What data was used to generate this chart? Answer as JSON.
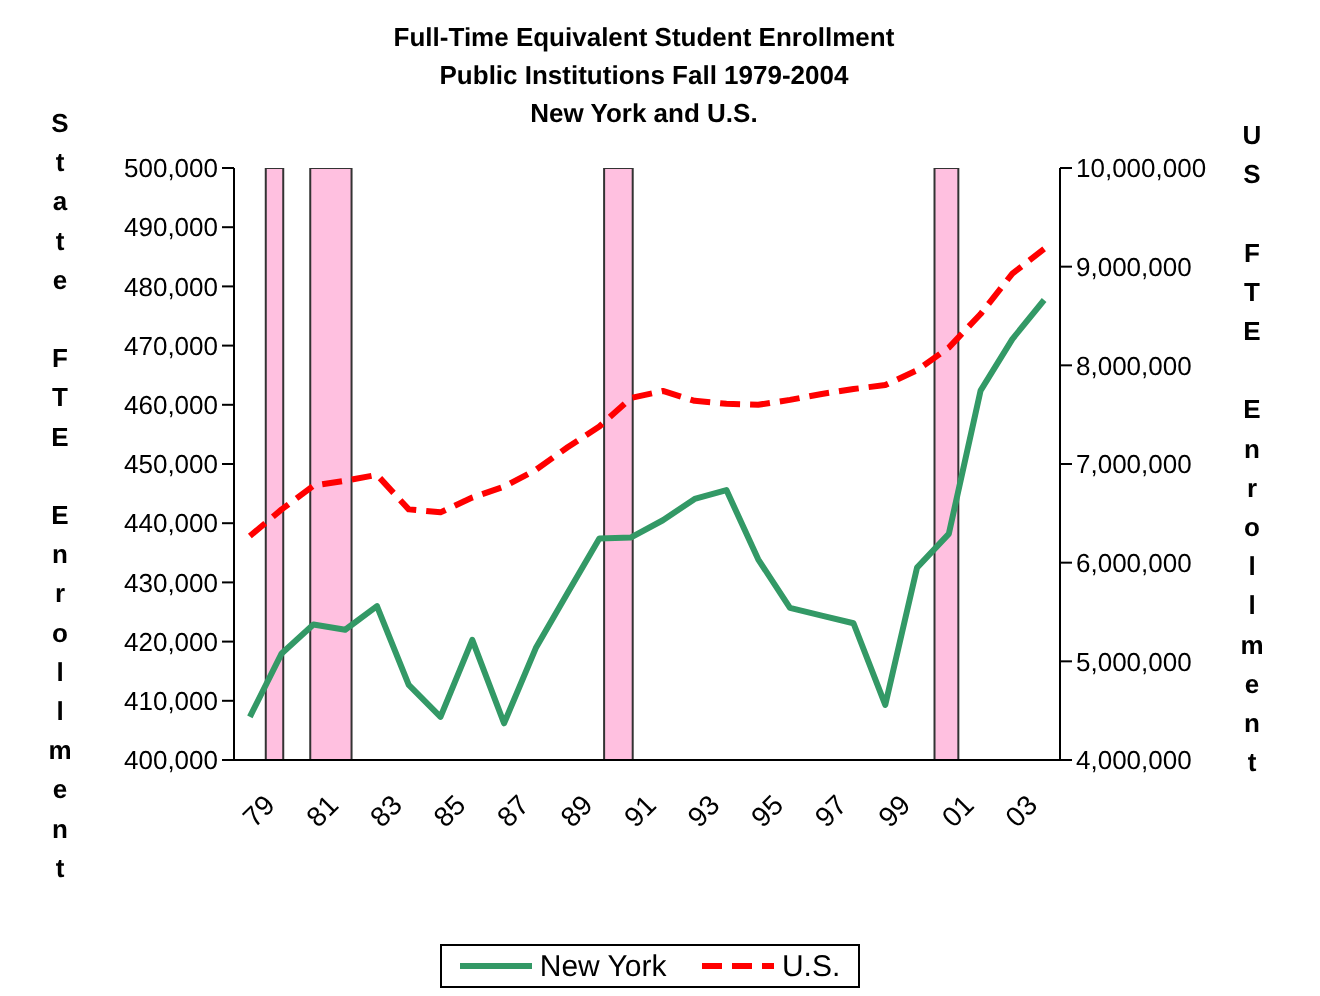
{
  "chart_data": {
    "type": "line",
    "title": "Full-Time Equivalent Student Enrollment\nPublic Institutions Fall 1979-2004\nNew York and U.S.",
    "ylabel": "State FTE Enrollment",
    "y2label": "US FTE Enrollment",
    "x": [
      1979,
      1980,
      1981,
      1982,
      1983,
      1984,
      1985,
      1986,
      1987,
      1988,
      1989,
      1990,
      1991,
      1992,
      1993,
      1994,
      1995,
      1996,
      1997,
      1998,
      1999,
      2000,
      2001,
      2002,
      2003,
      2004
    ],
    "series": [
      {
        "name": "New York",
        "color": "#339966",
        "line_style": "solid",
        "values": [
          407300,
          418000,
          422900,
          422000,
          426000,
          412700,
          407300,
          420300,
          406200,
          418900,
          428200,
          437400,
          437600,
          440500,
          444100,
          445600,
          433900,
          425700,
          424400,
          423100,
          409300,
          432500,
          438200,
          462400,
          471100,
          477700
        ]
      },
      {
        "name": "U.S.",
        "color": "#ff0000",
        "line_style": "dashed",
        "axis": "y2",
        "values": [
          6270000,
          6540000,
          6780000,
          6830000,
          6890000,
          6540000,
          6510000,
          6660000,
          6770000,
          6940000,
          7170000,
          7380000,
          7670000,
          7740000,
          7640000,
          7610000,
          7600000,
          7650000,
          7710000,
          7760000,
          7800000,
          7950000,
          8180000,
          8520000,
          8930000,
          9180000
        ]
      }
    ],
    "xlim": [
      1978.5,
      2004.5
    ],
    "xticks": [
      {
        "value": 1979,
        "label": "79"
      },
      {
        "value": 1981,
        "label": "81"
      },
      {
        "value": 1983,
        "label": "83"
      },
      {
        "value": 1985,
        "label": "85"
      },
      {
        "value": 1987,
        "label": "87"
      },
      {
        "value": 1989,
        "label": "89"
      },
      {
        "value": 1991,
        "label": "91"
      },
      {
        "value": 1993,
        "label": "93"
      },
      {
        "value": 1995,
        "label": "95"
      },
      {
        "value": 1997,
        "label": "97"
      },
      {
        "value": 1999,
        "label": "99"
      },
      {
        "value": 2001,
        "label": "01"
      },
      {
        "value": 2003,
        "label": "03"
      }
    ],
    "ylim": [
      400000,
      500000
    ],
    "yticks": [
      {
        "value": 400000,
        "label": "400,000"
      },
      {
        "value": 410000,
        "label": "410,000"
      },
      {
        "value": 420000,
        "label": "420,000"
      },
      {
        "value": 430000,
        "label": "430,000"
      },
      {
        "value": 440000,
        "label": "440,000"
      },
      {
        "value": 450000,
        "label": "450,000"
      },
      {
        "value": 460000,
        "label": "460,000"
      },
      {
        "value": 470000,
        "label": "470,000"
      },
      {
        "value": 480000,
        "label": "480,000"
      },
      {
        "value": 490000,
        "label": "490,000"
      },
      {
        "value": 500000,
        "label": "500,000"
      }
    ],
    "y2lim": [
      4000000,
      10000000
    ],
    "y2ticks": [
      {
        "value": 4000000,
        "label": "4,000,000"
      },
      {
        "value": 5000000,
        "label": "5,000,000"
      },
      {
        "value": 6000000,
        "label": "6,000,000"
      },
      {
        "value": 7000000,
        "label": "7,000,000"
      },
      {
        "value": 8000000,
        "label": "8,000,000"
      },
      {
        "value": 9000000,
        "label": "9,000,000"
      },
      {
        "value": 10000000,
        "label": "10,000,000"
      }
    ],
    "bands": [
      {
        "axis": "x",
        "from": 1979.5,
        "to": 1980.05,
        "color": "#ffc0e0"
      },
      {
        "axis": "x",
        "from": 1980.9,
        "to": 1982.2,
        "color": "#ffc0e0"
      },
      {
        "axis": "x",
        "from": 1990.15,
        "to": 1991.05,
        "color": "#ffc0e0"
      },
      {
        "axis": "x",
        "from": 2000.55,
        "to": 2001.3,
        "color": "#ffc0e0"
      }
    ],
    "marker": "none",
    "legend": "bottom"
  }
}
